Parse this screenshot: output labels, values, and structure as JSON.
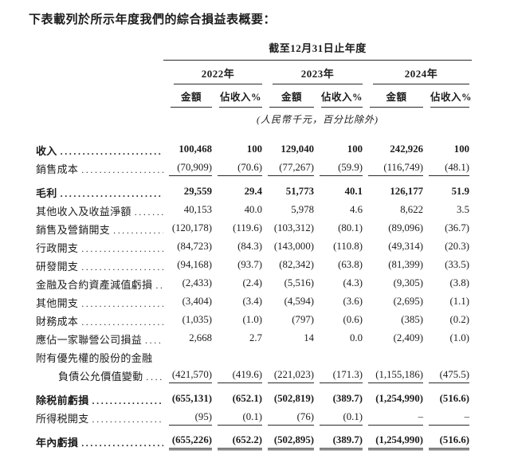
{
  "title": "下表載列於所示年度我們的綜合損益表概要：",
  "table": {
    "period_header": "截至12月31日止年度",
    "unit_note": "(人民幣千元，百分比除外)",
    "year_groups": [
      {
        "year": "2022年",
        "amount_label": "金額",
        "pct_label": "佔收入%"
      },
      {
        "year": "2023年",
        "amount_label": "金額",
        "pct_label": "佔收入%"
      },
      {
        "year": "2024年",
        "amount_label": "金額",
        "pct_label": "佔收入%"
      }
    ],
    "rows": [
      {
        "label": "收入",
        "bold": true,
        "values": [
          "100,468",
          "100",
          "129,040",
          "100",
          "242,926",
          "100"
        ]
      },
      {
        "label": "銷售成本",
        "rule": "single",
        "values": [
          "(70,909)",
          "(70.6)",
          "(77,267)",
          "(59.9)",
          "(116,749)",
          "(48.1)"
        ]
      },
      {
        "label": "毛利",
        "bold": true,
        "values": [
          "29,559",
          "29.4",
          "51,773",
          "40.1",
          "126,177",
          "51.9"
        ]
      },
      {
        "label": "其他收入及收益淨額",
        "values": [
          "40,153",
          "40.0",
          "5,978",
          "4.6",
          "8,622",
          "3.5"
        ]
      },
      {
        "label": "銷售及營銷開支",
        "values": [
          "(120,178)",
          "(119.6)",
          "(103,312)",
          "(80.1)",
          "(89,096)",
          "(36.7)"
        ]
      },
      {
        "label": "行政開支",
        "values": [
          "(84,723)",
          "(84.3)",
          "(143,000)",
          "(110.8)",
          "(49,314)",
          "(20.3)"
        ]
      },
      {
        "label": "研發開支",
        "values": [
          "(94,168)",
          "(93.7)",
          "(82,342)",
          "(63.8)",
          "(81,399)",
          "(33.5)"
        ]
      },
      {
        "label": "金融及合約資產減值虧損",
        "values": [
          "(2,433)",
          "(2.4)",
          "(5,516)",
          "(4.3)",
          "(9,305)",
          "(3.8)"
        ]
      },
      {
        "label": "其他開支",
        "values": [
          "(3,404)",
          "(3.4)",
          "(4,594)",
          "(3.6)",
          "(2,695)",
          "(1.1)"
        ]
      },
      {
        "label": "財務成本",
        "values": [
          "(1,035)",
          "(1.0)",
          "(797)",
          "(0.6)",
          "(385)",
          "(0.2)"
        ]
      },
      {
        "label": "應佔一家聯營公司損益",
        "values": [
          "2,668",
          "2.7",
          "14",
          "0.0",
          "(2,409)",
          "(1.0)"
        ]
      },
      {
        "label": "附有優先權的股份的金融",
        "no_leader": true,
        "values": [
          "",
          "",
          "",
          "",
          "",
          ""
        ]
      },
      {
        "label": "負債公允價值變動",
        "indent": true,
        "rule": "single",
        "values": [
          "(421,570)",
          "(419.6)",
          "(221,023)",
          "(171.3)",
          "(1,155,186)",
          "(475.5)"
        ]
      },
      {
        "label": "除税前虧損",
        "bold": true,
        "values": [
          "(655,131)",
          "(652.1)",
          "(502,819)",
          "(389.7)",
          "(1,254,990)",
          "(516.6)"
        ]
      },
      {
        "label": "所得税開支",
        "rule": "single",
        "values": [
          "(95)",
          "(0.1)",
          "(76)",
          "(0.1)",
          "–",
          "–"
        ]
      },
      {
        "label": "年內虧損",
        "bold": true,
        "rule": "double",
        "values": [
          "(655,226)",
          "(652.2)",
          "(502,895)",
          "(389.7)",
          "(1,254,990)",
          "(516.6)"
        ]
      }
    ]
  }
}
